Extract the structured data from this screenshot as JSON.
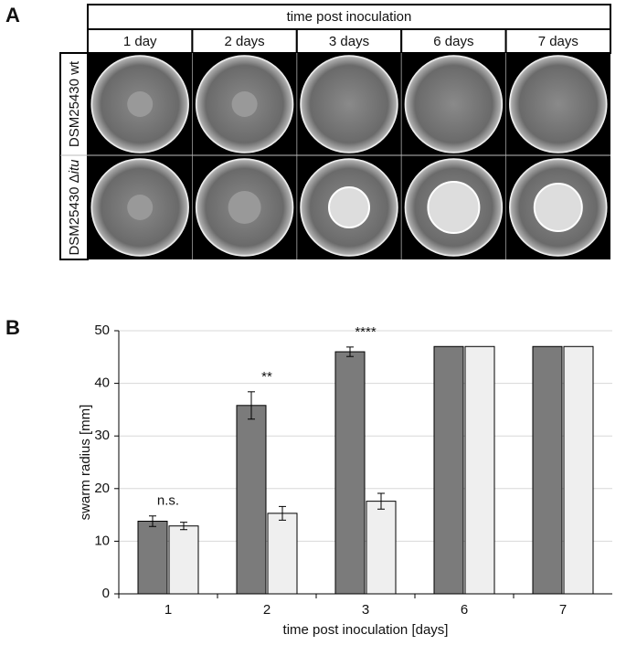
{
  "panel_a": {
    "label": "A",
    "header": "time post inoculation",
    "columns": [
      "1 day",
      "2 days",
      "3 days",
      "6 days",
      "7 days"
    ],
    "row_labels": [
      [
        "DSM25430 wt"
      ],
      [
        "DSM25430 Δ",
        "itu"
      ]
    ]
  },
  "chart_data": {
    "type": "bar",
    "panel_label": "B",
    "x_label": "time post inoculation [days]",
    "y_label": "swarm radius [mm]",
    "categories": [
      "1",
      "2",
      "3",
      "6",
      "7"
    ],
    "series": [
      {
        "color": "#7b7b7b",
        "values": [
          13.8,
          35.8,
          46,
          47,
          47
        ],
        "errors": [
          1.0,
          2.6,
          0.9,
          null,
          null
        ]
      },
      {
        "color": "#efefef",
        "values": [
          12.9,
          15.3,
          17.6,
          47,
          47
        ],
        "errors": [
          0.7,
          1.3,
          1.5,
          null,
          null
        ]
      }
    ],
    "annotations": [
      "n.s.",
      "**",
      "****"
    ],
    "ylim": [
      0,
      50
    ],
    "yticks": [
      0,
      10,
      20,
      30,
      40,
      50
    ],
    "grid": true
  }
}
